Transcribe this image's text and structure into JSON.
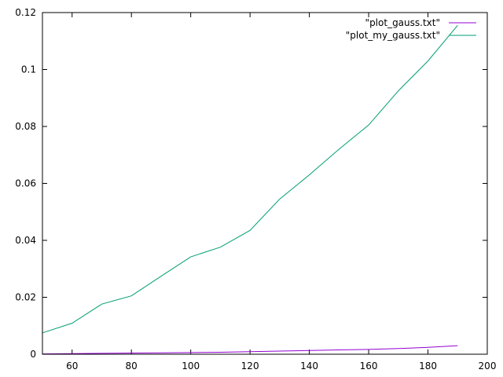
{
  "chart_data": {
    "type": "line",
    "xlim": [
      50,
      200
    ],
    "ylim": [
      0,
      0.12
    ],
    "x_ticks": [
      60,
      80,
      100,
      120,
      140,
      160,
      180,
      200
    ],
    "x_tick_labels": [
      "60",
      "80",
      "100",
      "120",
      "140",
      "160",
      "180",
      "200"
    ],
    "y_ticks": [
      0,
      0.02,
      0.04,
      0.06,
      0.08,
      0.1,
      0.12
    ],
    "y_tick_labels": [
      "0",
      "0.02",
      "0.04",
      "0.06",
      "0.08",
      "0.1",
      "0.12"
    ],
    "grid": false,
    "legend_position": "top-right",
    "series": [
      {
        "name": "\"plot_gauss.txt\"",
        "color": "#9400d3",
        "x": [
          50,
          60,
          70,
          80,
          90,
          100,
          110,
          120,
          130,
          140,
          150,
          160,
          170,
          180,
          190
        ],
        "y": [
          0.0001,
          0.0002,
          0.0003,
          0.0004,
          0.0005,
          0.0006,
          0.0007,
          0.0009,
          0.0011,
          0.0013,
          0.0015,
          0.0017,
          0.002,
          0.0024,
          0.003
        ]
      },
      {
        "name": "\"plot_my_gauss.txt\"",
        "color": "#009e73",
        "x": [
          50,
          60,
          70,
          80,
          90,
          100,
          110,
          120,
          130,
          140,
          150,
          160,
          170,
          180,
          190
        ],
        "y": [
          0.0075,
          0.0109,
          0.0176,
          0.0205,
          0.0274,
          0.0342,
          0.0376,
          0.0435,
          0.0545,
          0.063,
          0.072,
          0.0805,
          0.0925,
          0.103,
          0.1155
        ]
      }
    ]
  }
}
